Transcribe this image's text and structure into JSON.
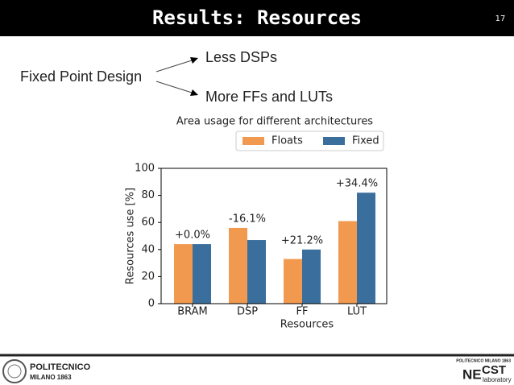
{
  "header": {
    "title": "Results: Resources",
    "page_number": "17"
  },
  "points": {
    "main": "Fixed Point Design",
    "items": [
      "Less DSPs",
      "More FFs and LUTs"
    ]
  },
  "footer": {
    "left": [
      "POLITECNICO",
      "MILANO 1863"
    ],
    "right": {
      "top": "POLITECNICO MILANO 1863",
      "ne": "NE",
      "cst": "CST",
      "lab": "laboratory"
    }
  },
  "chart_data": {
    "type": "bar",
    "title": "Area usage for different architectures",
    "x_label": "Resources",
    "y_label": "Resources use [%]",
    "categories": [
      "BRAM",
      "DSP",
      "FF",
      "LUT"
    ],
    "series": [
      {
        "name": "Floats",
        "color": "#f0994f",
        "values": [
          44,
          56,
          33,
          61
        ]
      },
      {
        "name": "Fixed",
        "color": "#3a6e9c",
        "values": [
          44,
          47,
          40,
          82
        ]
      }
    ],
    "annotations": [
      "+0.0%",
      "-16.1%",
      "+21.2%",
      "+34.4%"
    ],
    "ylim": [
      0,
      100
    ],
    "yticks": [
      0,
      20,
      40,
      60,
      80,
      100
    ],
    "grid": false,
    "legend": "upper right"
  }
}
